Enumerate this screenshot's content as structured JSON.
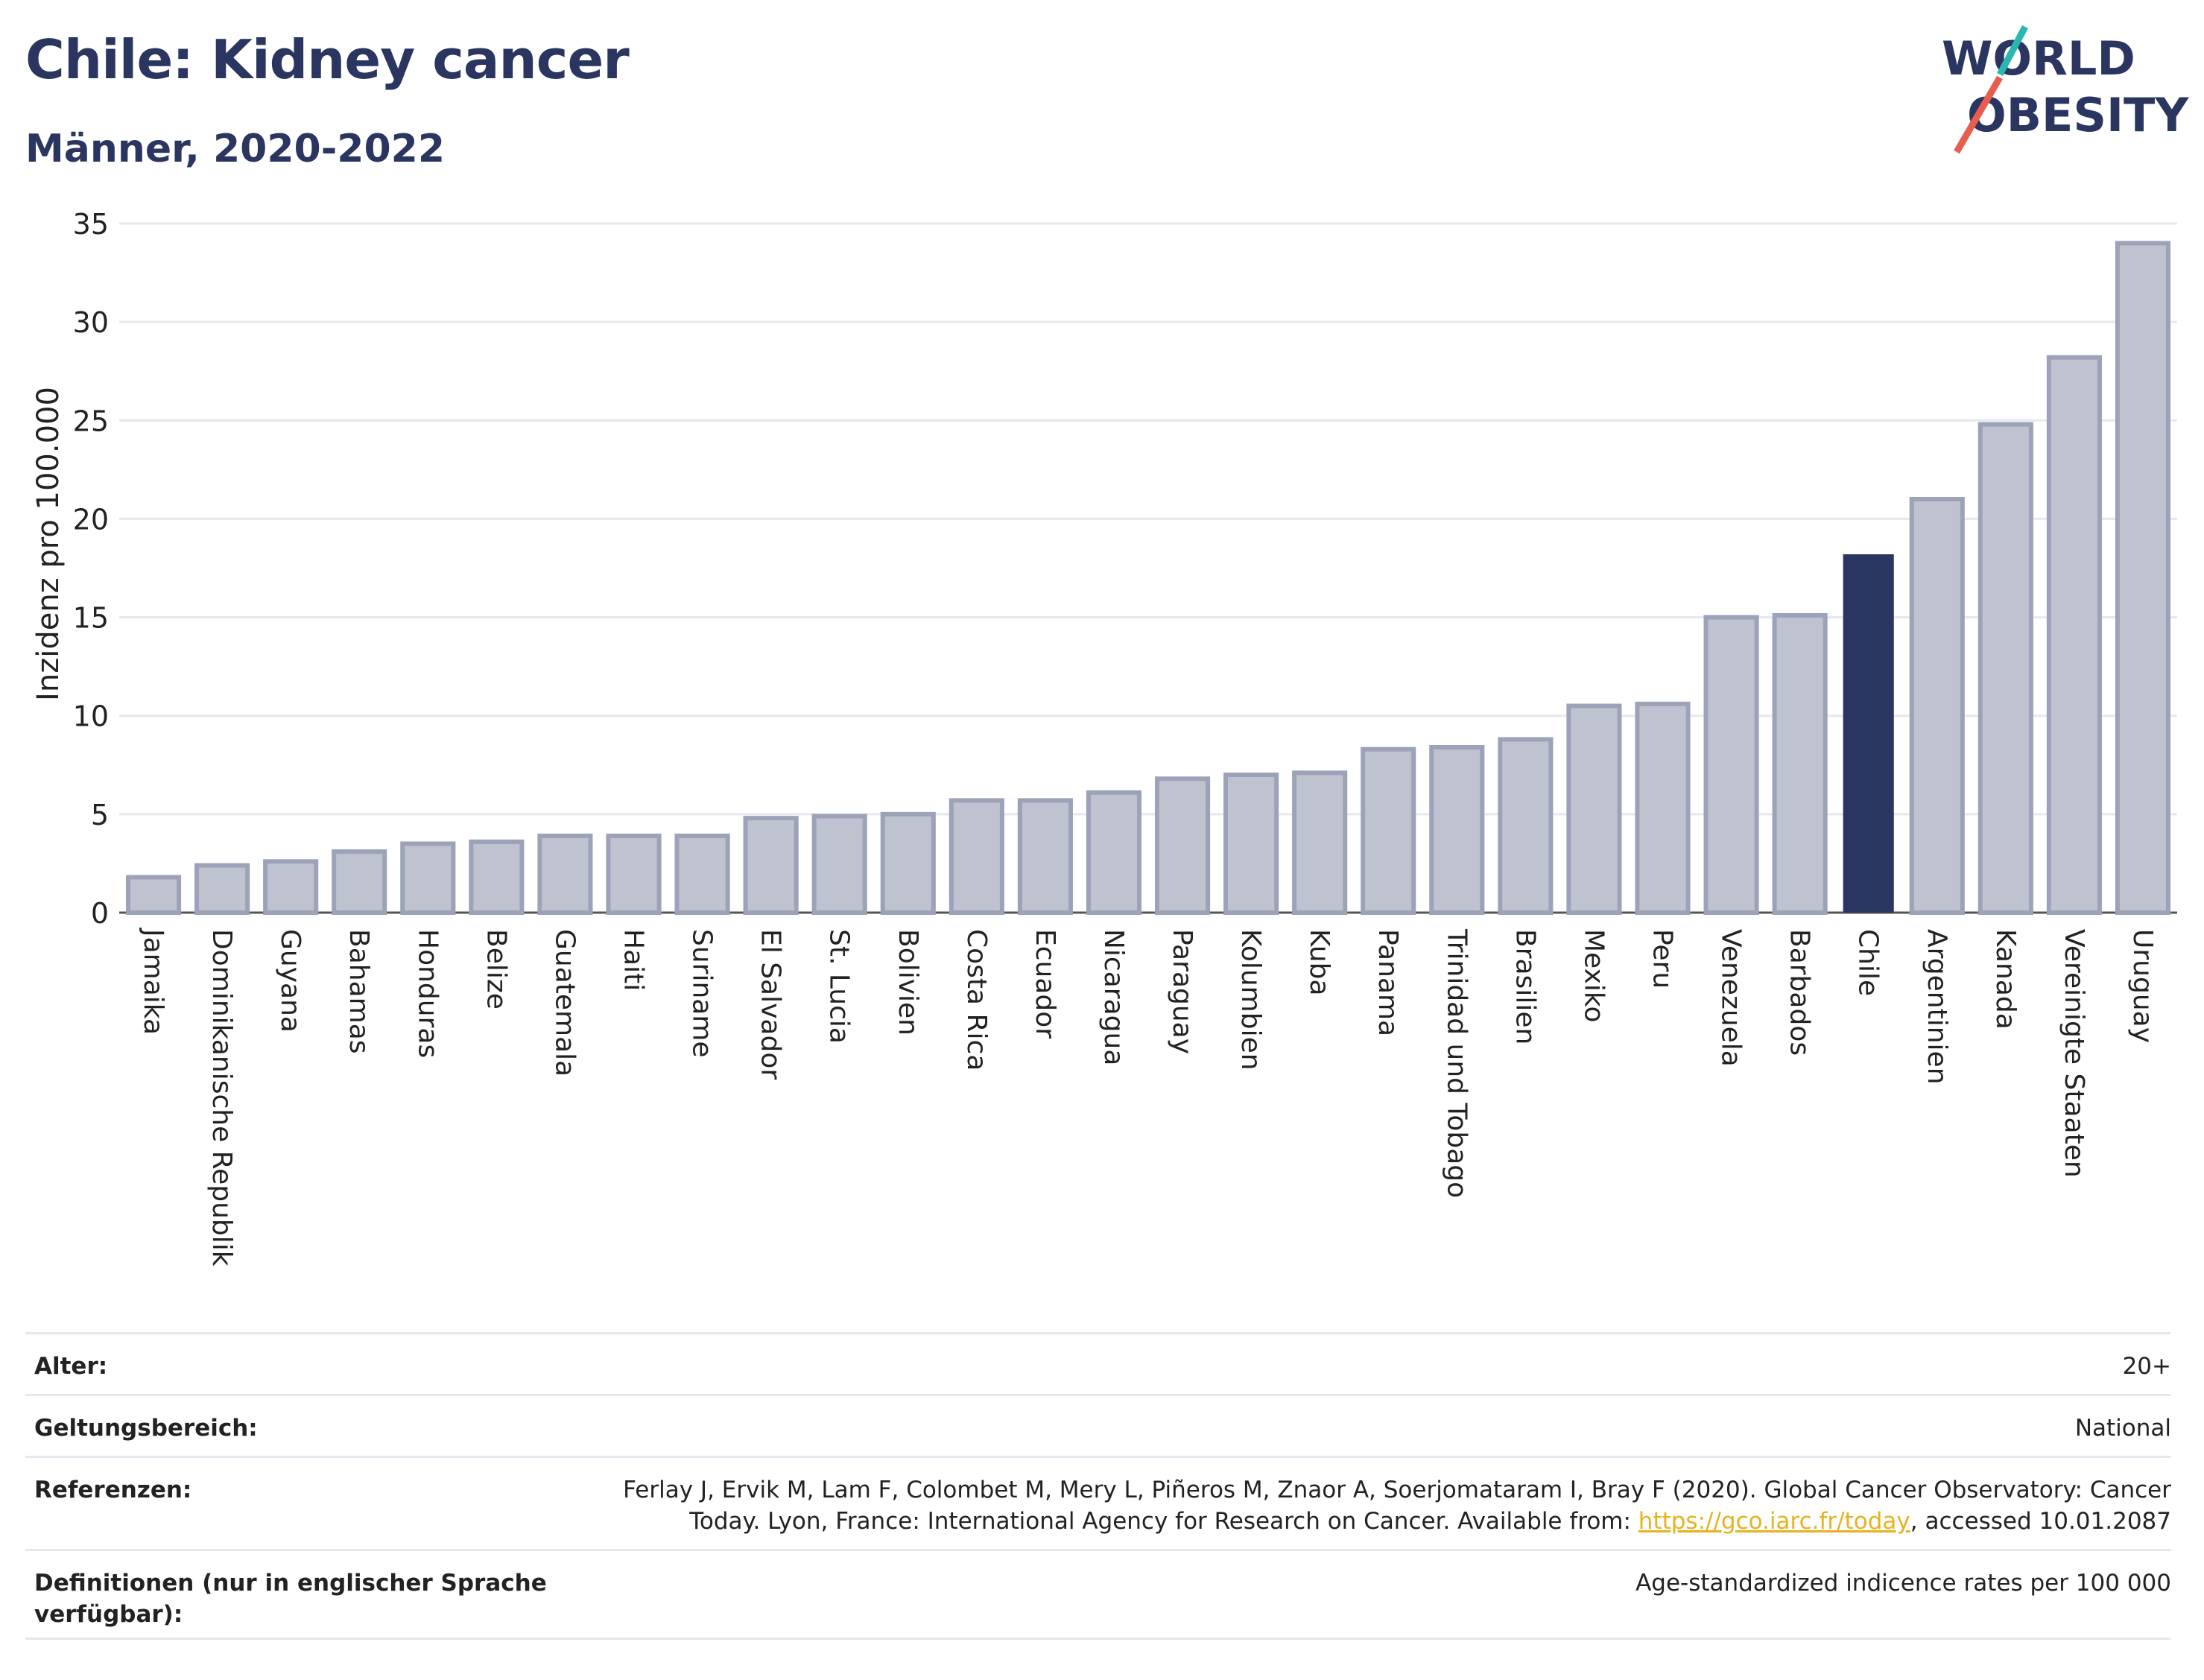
{
  "header": {
    "title": "Chile: Kidney cancer",
    "subtitle": "Männer, 2020-2022"
  },
  "logo": {
    "line1": "WORLD",
    "line2": "OBESITY"
  },
  "colors": {
    "highlight": "#2a3560",
    "bar_fill": "#bfc3d0",
    "bar_stroke": "#9ca2b8",
    "grid": "#e6e8ef",
    "logo_teal": "#2ab7b0",
    "logo_red": "#e85d4e",
    "link": "#e8b21e"
  },
  "chart_data": {
    "type": "bar",
    "title": "Chile: Kidney cancer",
    "subtitle": "Männer, 2020-2022",
    "xlabel": "",
    "ylabel": "Inzidenz pro 100.000",
    "ylim": [
      0,
      35
    ],
    "yticks": [
      0,
      5,
      10,
      15,
      20,
      25,
      30,
      35
    ],
    "grid": true,
    "highlight_category": "Chile",
    "categories": [
      "Jamaika",
      "Dominikanische Republik",
      "Guyana",
      "Bahamas",
      "Honduras",
      "Belize",
      "Guatemala",
      "Haiti",
      "Suriname",
      "El Salvador",
      "St. Lucia",
      "Bolivien",
      "Costa Rica",
      "Ecuador",
      "Nicaragua",
      "Paraguay",
      "Kolumbien",
      "Kuba",
      "Panama",
      "Trinidad und Tobago",
      "Brasilien",
      "Mexiko",
      "Peru",
      "Venezuela",
      "Barbados",
      "Chile",
      "Argentinien",
      "Kanada",
      "Vereinigte Staaten",
      "Uruguay"
    ],
    "values": [
      1.8,
      2.4,
      2.6,
      3.1,
      3.5,
      3.6,
      3.9,
      3.9,
      3.9,
      4.8,
      4.9,
      5.0,
      5.7,
      5.7,
      6.1,
      6.8,
      7.0,
      7.1,
      8.3,
      8.4,
      8.8,
      10.5,
      10.6,
      15.0,
      15.1,
      18.2,
      21.0,
      24.8,
      28.2,
      34.0
    ]
  },
  "info": {
    "rows": [
      {
        "label": "Alter:",
        "value": "20+"
      },
      {
        "label": "Geltungsbereich:",
        "value": "National"
      },
      {
        "label": "Referenzen:",
        "value_pre": "Ferlay J, Ervik M, Lam F, Colombet M, Mery L, Piñeros M, Znaor A, Soerjomataram I, Bray F (2020). Global Cancer Observatory: Cancer Today. Lyon, France: International Agency for Research on Cancer. Available from: ",
        "link": "https://gco.iarc.fr/today",
        "value_post": ", accessed 10.01.2087"
      },
      {
        "label": "Definitionen (nur in englischer Sprache verfügbar):",
        "value": "Age-standardized indicence rates per 100 000"
      }
    ]
  }
}
